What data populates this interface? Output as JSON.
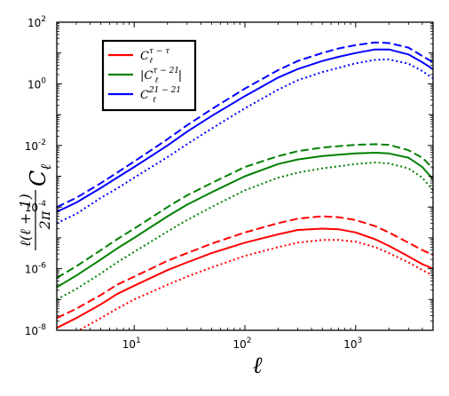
{
  "chart_data": {
    "type": "line",
    "xscale": "log",
    "yscale": "log",
    "xlim": [
      2,
      5000
    ],
    "ylim": [
      1e-08,
      100
    ],
    "xlabel": "ℓ",
    "ylabel": "ℓ(ℓ+1)/2π C_ℓ",
    "x_ticks": [
      {
        "value": 10,
        "base": "10",
        "exp": "1"
      },
      {
        "value": 100,
        "base": "10",
        "exp": "2"
      },
      {
        "value": 1000,
        "base": "10",
        "exp": "3"
      }
    ],
    "y_ticks": [
      {
        "value": 1e-08,
        "base": "10",
        "exp": "-8"
      },
      {
        "value": 1e-06,
        "base": "10",
        "exp": "-6"
      },
      {
        "value": 0.0001,
        "base": "10",
        "exp": "-4"
      },
      {
        "value": 0.01,
        "base": "10",
        "exp": "-2"
      },
      {
        "value": 1,
        "base": "10",
        "exp": "0"
      },
      {
        "value": 100,
        "base": "10",
        "exp": "2"
      }
    ],
    "legend": {
      "placement": "upper-left",
      "entries": [
        {
          "label": "C_ℓ^{τ−τ}",
          "base": "C",
          "sub": "ℓ",
          "sup": "τ − τ",
          "abs": false,
          "color": "#ff0000"
        },
        {
          "label": "|C_ℓ^{τ−21}|",
          "base": "C",
          "sub": "ℓ",
          "sup": "τ − 21",
          "abs": true,
          "color": "#008000"
        },
        {
          "label": "C_ℓ^{21−21}",
          "base": "C",
          "sub": "ℓ",
          "sup": "21 − 21",
          "abs": false,
          "color": "#0000ff"
        }
      ]
    },
    "x": [
      2,
      3,
      5,
      7,
      10,
      20,
      30,
      50,
      100,
      200,
      300,
      500,
      700,
      1000,
      1500,
      2000,
      3000,
      4000,
      5000
    ],
    "series": [
      {
        "group": "tau-tau",
        "color": "#ff0000",
        "style": "solid",
        "values": [
          1.2e-08,
          2.5e-08,
          7e-08,
          1.5e-07,
          2.8e-07,
          9e-07,
          1.6e-06,
          3.2e-06,
          7e-06,
          1.3e-05,
          1.8e-05,
          2e-05,
          1.9e-05,
          1.5e-05,
          9e-06,
          5.5e-06,
          2.5e-06,
          1.4e-06,
          1e-06
        ]
      },
      {
        "group": "tau-tau",
        "color": "#ff0000",
        "style": "dashed",
        "values": [
          2.5e-08,
          5e-08,
          1.4e-07,
          3e-07,
          5.5e-07,
          1.8e-06,
          3.2e-06,
          6.5e-06,
          1.5e-05,
          3e-05,
          4.2e-05,
          5e-05,
          4.7e-05,
          3.8e-05,
          2.4e-05,
          1.5e-05,
          7e-06,
          4e-06,
          2.8e-06
        ]
      },
      {
        "group": "tau-tau",
        "color": "#ff0000",
        "style": "dotted",
        "values": [
          4e-09,
          9e-09,
          2.5e-08,
          5e-08,
          1e-07,
          3e-07,
          5.5e-07,
          1.1e-06,
          2.6e-06,
          5e-06,
          7e-06,
          8.5e-06,
          8.5e-06,
          7.5e-06,
          5e-06,
          3.2e-06,
          1.6e-06,
          9e-07,
          6e-07
        ]
      },
      {
        "group": "tau-21",
        "color": "#008000",
        "style": "solid",
        "values": [
          2.5e-07,
          6e-07,
          2e-06,
          4.5e-06,
          1e-05,
          5e-05,
          0.00012,
          0.0003,
          0.001,
          0.0025,
          0.0035,
          0.0045,
          0.005,
          0.0055,
          0.0058,
          0.0055,
          0.004,
          0.002,
          0.0008
        ]
      },
      {
        "group": "tau-21",
        "color": "#008000",
        "style": "dashed",
        "values": [
          5e-07,
          1.2e-06,
          4e-06,
          9e-06,
          2e-05,
          0.0001,
          0.00024,
          0.0006,
          0.002,
          0.0045,
          0.0065,
          0.0085,
          0.0095,
          0.0105,
          0.011,
          0.0105,
          0.007,
          0.004,
          0.0018
        ]
      },
      {
        "group": "tau-21",
        "color": "#008000",
        "style": "dotted",
        "values": [
          1e-07,
          2.2e-07,
          7e-07,
          1.6e-06,
          3.5e-06,
          1.6e-05,
          3.8e-05,
          0.0001,
          0.00035,
          0.0009,
          0.0013,
          0.0018,
          0.0021,
          0.0025,
          0.0028,
          0.0026,
          0.0018,
          0.0009,
          0.00035
        ]
      },
      {
        "group": "21-21",
        "color": "#0000ff",
        "style": "solid",
        "values": [
          7e-05,
          0.00014,
          0.00042,
          0.0009,
          0.002,
          0.01,
          0.028,
          0.09,
          0.4,
          1.6,
          3,
          5.5,
          7.5,
          10,
          13,
          13,
          9,
          5,
          3
        ]
      },
      {
        "group": "21-21",
        "color": "#0000ff",
        "style": "dashed",
        "values": [
          0.0001,
          0.0002,
          0.0006,
          0.0013,
          0.003,
          0.016,
          0.045,
          0.15,
          0.7,
          2.8,
          5.5,
          10,
          14,
          18,
          22,
          21,
          15,
          8,
          5
        ]
      },
      {
        "group": "21-21",
        "color": "#0000ff",
        "style": "dotted",
        "values": [
          3e-05,
          6e-05,
          0.0002,
          0.0004,
          0.0009,
          0.0042,
          0.011,
          0.035,
          0.16,
          0.65,
          1.3,
          2.4,
          3.3,
          4.6,
          6,
          6.2,
          4.5,
          2.6,
          1.5
        ]
      }
    ]
  }
}
